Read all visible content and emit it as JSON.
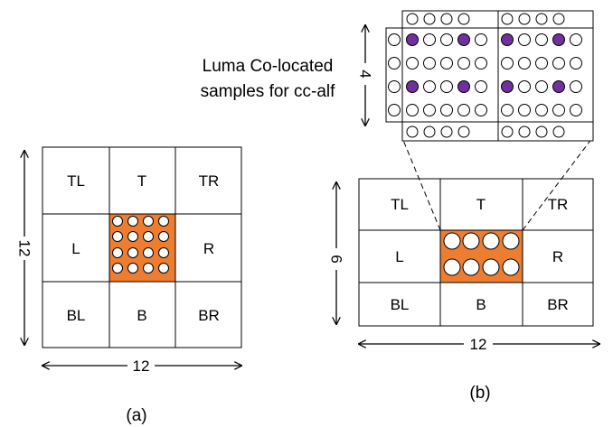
{
  "colors": {
    "highlight": "#ED7D31",
    "sample_dot": "#7030A0",
    "line": "#000000"
  },
  "panel_a": {
    "caption": "(a)",
    "height_label": "12",
    "width_label": "12",
    "cells": [
      "TL",
      "T",
      "TR",
      "L",
      "",
      "R",
      "BL",
      "B",
      "BR"
    ]
  },
  "panel_b": {
    "caption": "(b)",
    "height_label": "6",
    "width_label": "12",
    "cells": [
      "TL",
      "T",
      "TR",
      "L",
      "",
      "R",
      "BL",
      "B",
      "BR"
    ],
    "luma_height_label": "4",
    "luma_caption_line1": "Luma Co-located",
    "luma_caption_line2": "samples for cc-alf"
  }
}
